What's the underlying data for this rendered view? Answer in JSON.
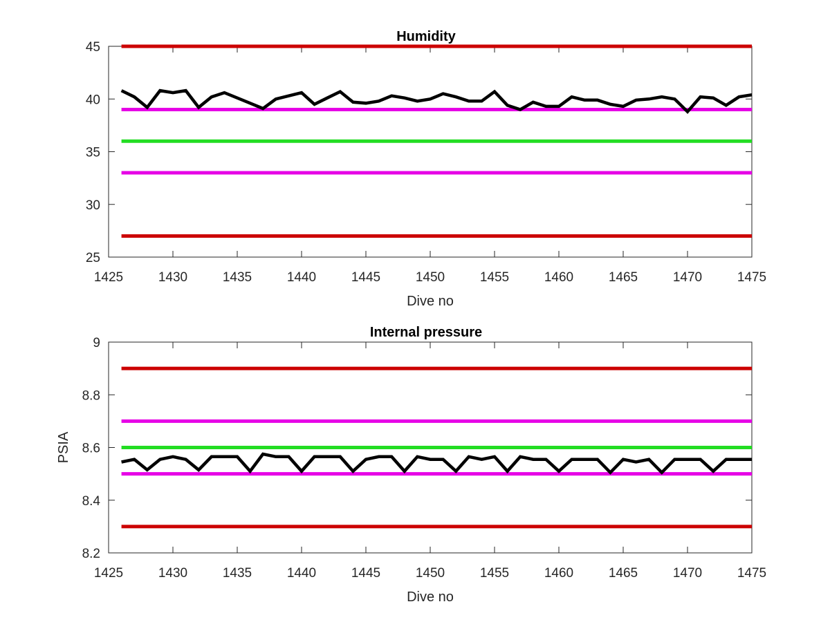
{
  "chart_data": [
    {
      "type": "line",
      "title": "Humidity",
      "xlabel": "Dive no",
      "ylabel": "",
      "xlim": [
        1425,
        1475
      ],
      "ylim": [
        25,
        45
      ],
      "xticks": [
        "1425",
        "1430",
        "1435",
        "1440",
        "1445",
        "1450",
        "1455",
        "1460",
        "1465",
        "1470",
        "1475"
      ],
      "yticks": [
        "25",
        "30",
        "35",
        "40",
        "45"
      ],
      "grid": false,
      "reference_lines": [
        {
          "y": 45,
          "color": "#cc0000"
        },
        {
          "y": 39,
          "color": "#e600e6"
        },
        {
          "y": 36,
          "color": "#22dd22"
        },
        {
          "y": 33,
          "color": "#e600e6"
        },
        {
          "y": 27,
          "color": "#cc0000"
        }
      ],
      "series": [
        {
          "color": "#000000",
          "x": [
            1426,
            1427,
            1428,
            1429,
            1430,
            1431,
            1432,
            1433,
            1434,
            1435,
            1436,
            1437,
            1438,
            1439,
            1440,
            1441,
            1442,
            1443,
            1444,
            1445,
            1446,
            1447,
            1448,
            1449,
            1450,
            1451,
            1452,
            1453,
            1454,
            1455,
            1456,
            1457,
            1458,
            1459,
            1460,
            1461,
            1462,
            1463,
            1464,
            1465,
            1466,
            1467,
            1468,
            1469,
            1470,
            1471,
            1472,
            1473,
            1474,
            1475
          ],
          "y": [
            40.8,
            40.2,
            39.2,
            40.8,
            40.6,
            40.8,
            39.2,
            40.2,
            40.6,
            40.1,
            39.6,
            39.1,
            40.0,
            40.3,
            40.6,
            39.5,
            40.1,
            40.7,
            39.7,
            39.6,
            39.8,
            40.3,
            40.1,
            39.8,
            40.0,
            40.5,
            40.2,
            39.8,
            39.8,
            40.7,
            39.4,
            39.0,
            39.7,
            39.3,
            39.3,
            40.2,
            39.9,
            39.9,
            39.5,
            39.3,
            39.9,
            40.0,
            40.2,
            40.0,
            38.8,
            40.2,
            40.1,
            39.4,
            40.2,
            40.4
          ]
        }
      ]
    },
    {
      "type": "line",
      "title": "Internal pressure",
      "xlabel": "Dive no",
      "ylabel": "PSIA",
      "xlim": [
        1425,
        1475
      ],
      "ylim": [
        8.2,
        9.0
      ],
      "xticks": [
        "1425",
        "1430",
        "1435",
        "1440",
        "1445",
        "1450",
        "1455",
        "1460",
        "1465",
        "1470",
        "1475"
      ],
      "yticks": [
        "8.2",
        "8.4",
        "8.6",
        "8.8",
        "9"
      ],
      "grid": false,
      "reference_lines": [
        {
          "y": 8.9,
          "color": "#cc0000"
        },
        {
          "y": 8.7,
          "color": "#e600e6"
        },
        {
          "y": 8.6,
          "color": "#22dd22"
        },
        {
          "y": 8.5,
          "color": "#e600e6"
        },
        {
          "y": 8.3,
          "color": "#cc0000"
        }
      ],
      "series": [
        {
          "color": "#000000",
          "x": [
            1426,
            1427,
            1428,
            1429,
            1430,
            1431,
            1432,
            1433,
            1434,
            1435,
            1436,
            1437,
            1438,
            1439,
            1440,
            1441,
            1442,
            1443,
            1444,
            1445,
            1446,
            1447,
            1448,
            1449,
            1450,
            1451,
            1452,
            1453,
            1454,
            1455,
            1456,
            1457,
            1458,
            1459,
            1460,
            1461,
            1462,
            1463,
            1464,
            1465,
            1466,
            1467,
            1468,
            1469,
            1470,
            1471,
            1472,
            1473,
            1474,
            1475
          ],
          "y": [
            8.545,
            8.555,
            8.515,
            8.555,
            8.565,
            8.555,
            8.515,
            8.565,
            8.565,
            8.565,
            8.51,
            8.575,
            8.565,
            8.565,
            8.51,
            8.565,
            8.565,
            8.565,
            8.51,
            8.555,
            8.565,
            8.565,
            8.51,
            8.565,
            8.555,
            8.555,
            8.51,
            8.565,
            8.555,
            8.565,
            8.51,
            8.565,
            8.555,
            8.555,
            8.51,
            8.555,
            8.555,
            8.555,
            8.505,
            8.555,
            8.545,
            8.555,
            8.505,
            8.555,
            8.555,
            8.555,
            8.51,
            8.555,
            8.555,
            8.555
          ]
        }
      ]
    }
  ]
}
